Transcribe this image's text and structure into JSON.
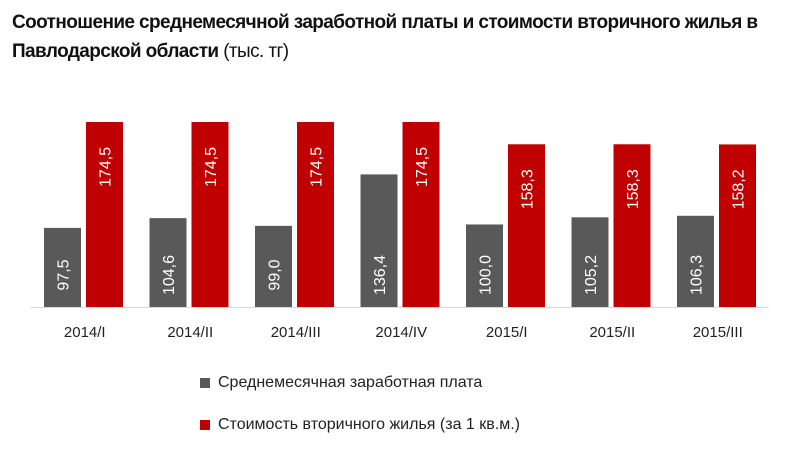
{
  "chart_data": {
    "type": "bar",
    "title": "Соотношение среднемесячной заработной платы и стоимости вторичного жилья в Павлодарской области",
    "unit": "(тыс. тг)",
    "categories": [
      "2014/I",
      "2014/II",
      "2014/III",
      "2014/IV",
      "2015/I",
      "2015/II",
      "2015/III"
    ],
    "series": [
      {
        "name": "Среднемесячная заработная плата",
        "color": "#595959",
        "values": [
          97.5,
          104.6,
          99.0,
          136.4,
          100.0,
          105.2,
          106.3
        ],
        "labels": [
          "97,5",
          "104,6",
          "99,0",
          "136,4",
          "100,0",
          "105,2",
          "106,3"
        ]
      },
      {
        "name": "Стоимость вторичного жилья (за 1 кв.м.)",
        "color": "#c00000",
        "values": [
          174.5,
          174.5,
          174.5,
          174.5,
          158.3,
          158.3,
          158.2
        ],
        "labels": [
          "174,5",
          "174,5",
          "174,5",
          "174,5",
          "158,3",
          "158,3",
          "158,2"
        ]
      }
    ],
    "ylim": [
      40,
      180
    ],
    "grid": false,
    "legend": "bottom"
  }
}
